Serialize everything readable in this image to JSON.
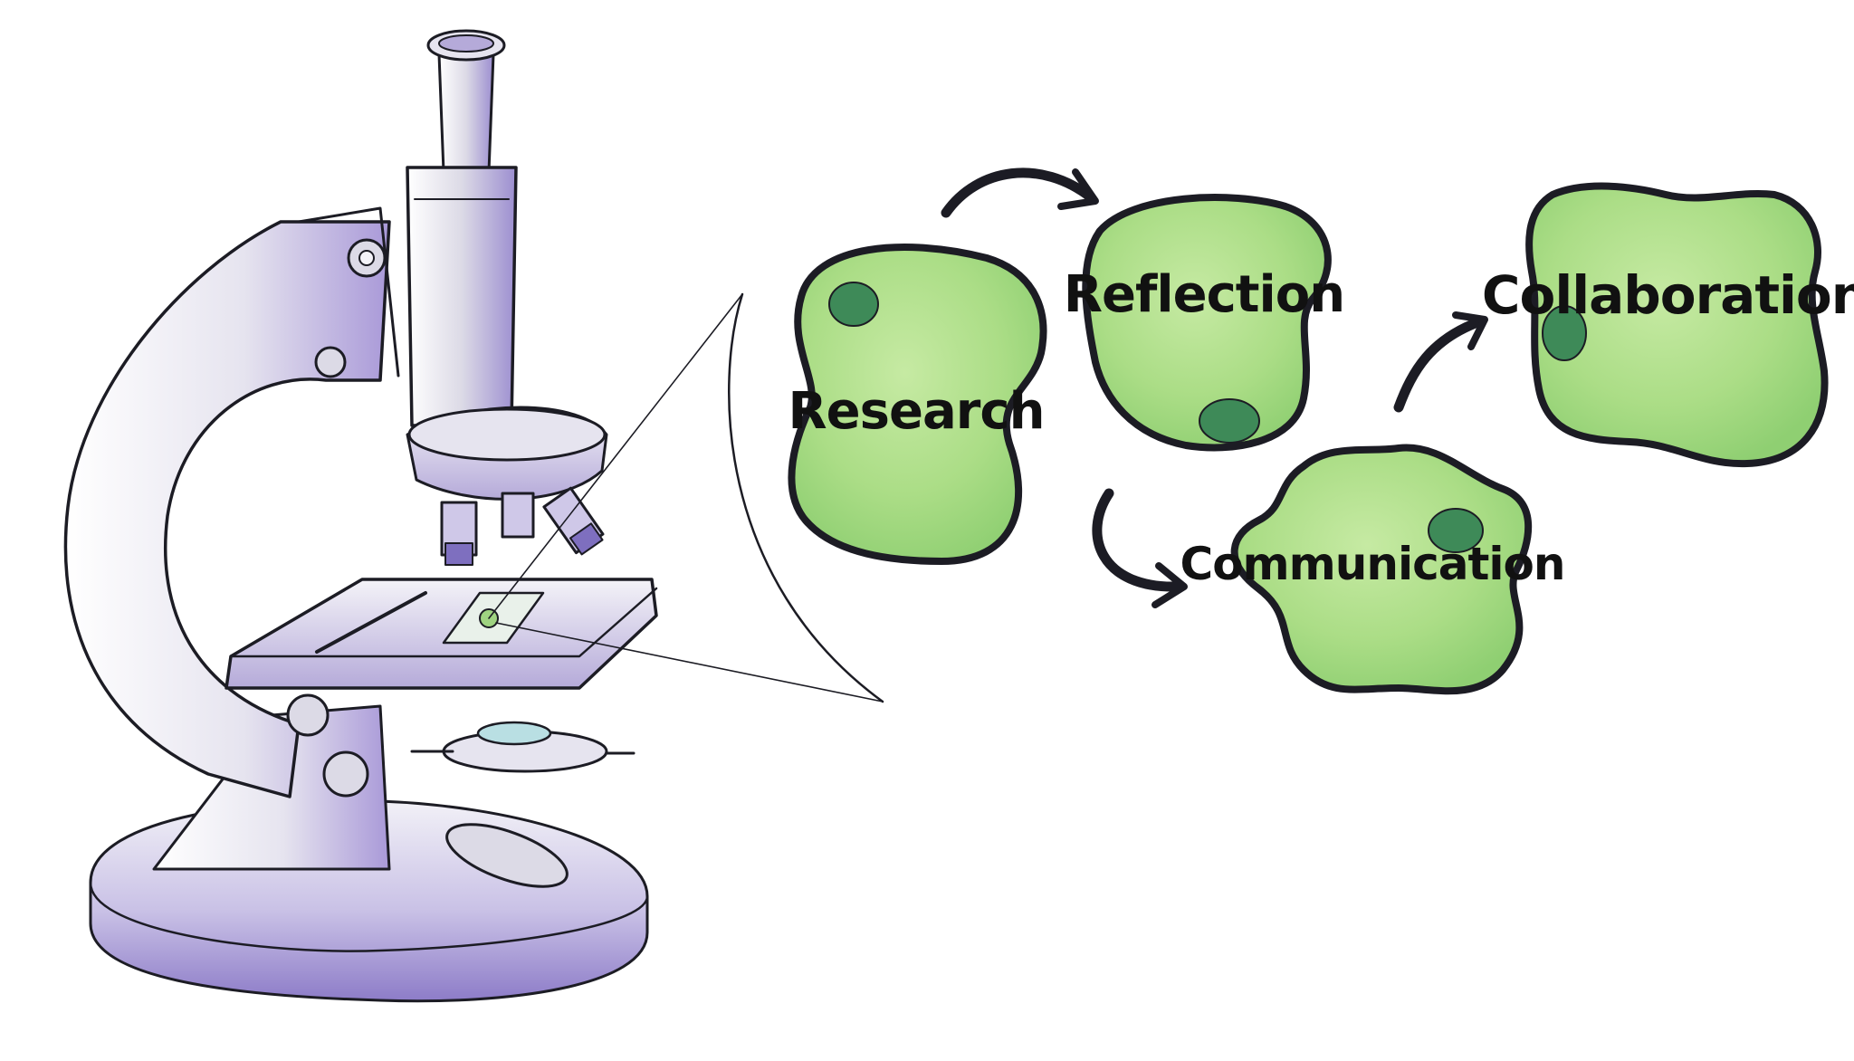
{
  "diagram": {
    "cells": [
      {
        "id": "research",
        "label": "Research"
      },
      {
        "id": "reflection",
        "label": "Reflection"
      },
      {
        "id": "communication",
        "label": "Communication"
      },
      {
        "id": "collaboration",
        "label": "Collaboration"
      }
    ],
    "arrows": [
      {
        "from": "research",
        "to": "reflection"
      },
      {
        "from": "reflection",
        "to": "communication"
      },
      {
        "from": "communication",
        "to": "collaboration"
      }
    ]
  },
  "colors": {
    "cell_fill": "#a9dd85",
    "cell_fill_light": "#c4e9a1",
    "cell_border": "#5cbf64",
    "nucleus": "#3e8a58",
    "microscope_body": "#e9e8f1",
    "microscope_shade": "#9f8fd0",
    "ink": "#1c1c24"
  },
  "icons": {
    "microscope": "microscope-illustration",
    "arrow": "curved-arrow-icon"
  }
}
